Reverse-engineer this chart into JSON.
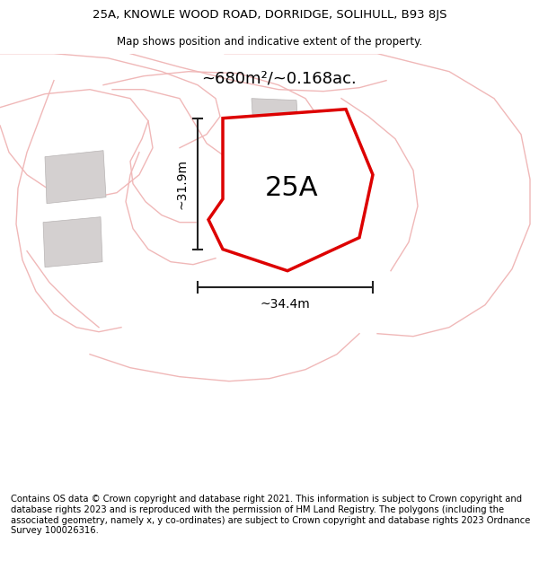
{
  "title_line1": "25A, KNOWLE WOOD ROAD, DORRIDGE, SOLIHULL, B93 8JS",
  "title_line2": "Map shows position and indicative extent of the property.",
  "area_label": "~680m²/~0.168ac.",
  "property_label": "25A",
  "width_label": "~34.4m",
  "height_label": "~31.9m",
  "footer_text": "Contains OS data © Crown copyright and database right 2021. This information is subject to Crown copyright and database rights 2023 and is reproduced with the permission of HM Land Registry. The polygons (including the associated geometry, namely x, y co-ordinates) are subject to Crown copyright and database rights 2023 Ordnance Survey 100026316.",
  "background_color": "#ffffff",
  "map_bg_color": "#ffffff",
  "road_color": "#f0b8b8",
  "building_color": "#d4d0d0",
  "property_outline_color": "#dd0000",
  "property_fill_color": "#ffffff",
  "dim_line_color": "#222222",
  "title_fontsize": 9.5,
  "subtitle_fontsize": 8.5,
  "area_fontsize": 13,
  "property_label_fontsize": 22,
  "dim_fontsize": 10,
  "footer_fontsize": 7.2
}
